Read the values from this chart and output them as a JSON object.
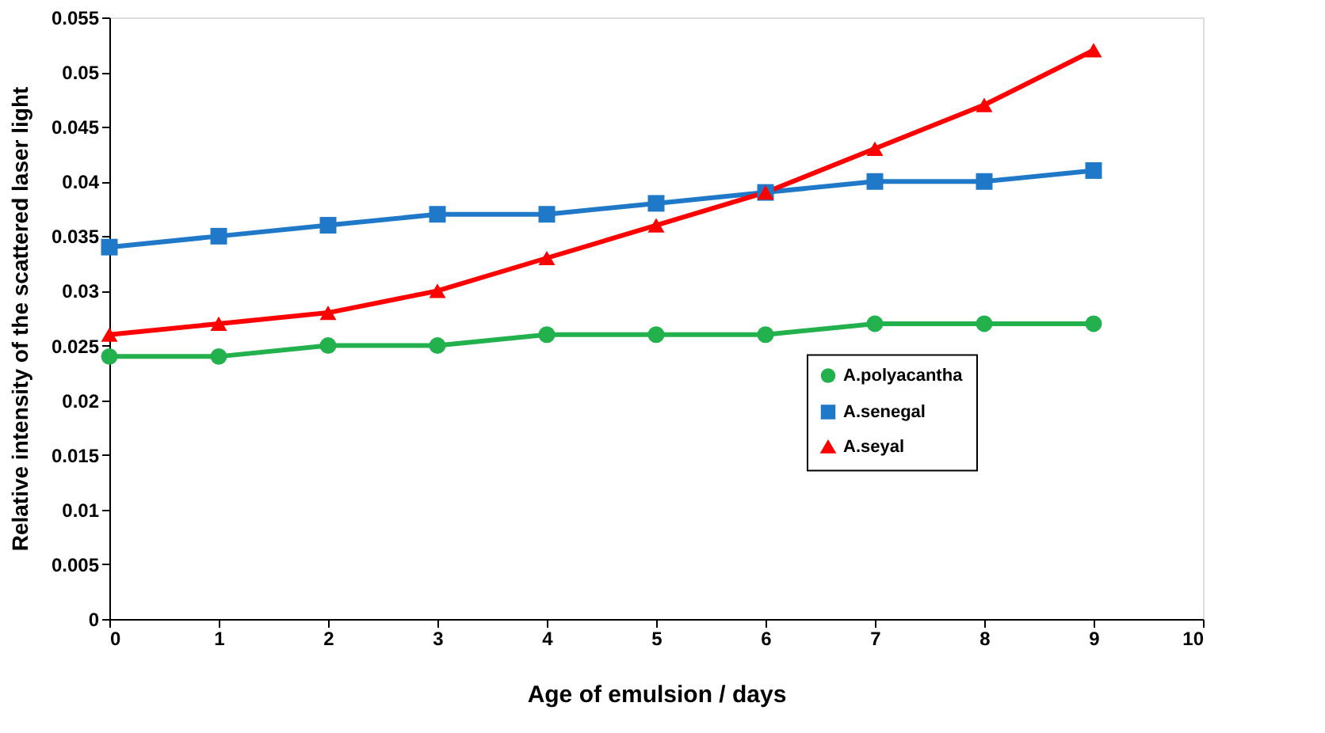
{
  "chart_data": {
    "type": "line",
    "xlabel": "Age of emulsion / days",
    "ylabel": "Relative intensity of the scattered laser light",
    "x": [
      0,
      1,
      2,
      3,
      4,
      5,
      6,
      7,
      8,
      9
    ],
    "series": [
      {
        "name": "A.polyacantha",
        "color": "#22b14c",
        "marker": "circle",
        "values": [
          0.024,
          0.024,
          0.025,
          0.025,
          0.026,
          0.026,
          0.026,
          0.027,
          0.027,
          0.027
        ]
      },
      {
        "name": "A.senegal",
        "color": "#1f78c8",
        "marker": "square",
        "values": [
          0.034,
          0.035,
          0.036,
          0.037,
          0.037,
          0.038,
          0.039,
          0.04,
          0.04,
          0.041
        ]
      },
      {
        "name": "A.seyal",
        "color": "#ff0000",
        "marker": "triangle",
        "values": [
          0.026,
          0.027,
          0.028,
          0.03,
          0.033,
          0.036,
          0.039,
          0.043,
          0.047,
          0.052
        ]
      }
    ],
    "xlim": [
      0,
      10
    ],
    "xticks": [
      0,
      1,
      2,
      3,
      4,
      5,
      6,
      7,
      8,
      9,
      10
    ],
    "ylim": [
      0,
      0.055
    ],
    "yticks": [
      0,
      0.005,
      0.01,
      0.015,
      0.02,
      0.025,
      0.03,
      0.035,
      0.04,
      0.045,
      0.05,
      0.055
    ],
    "grid": false,
    "legend": "right",
    "line_style": "solid"
  }
}
